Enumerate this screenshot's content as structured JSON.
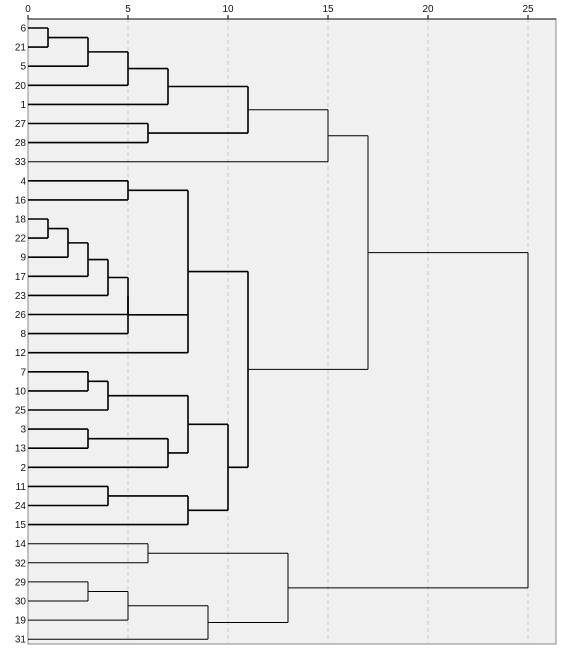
{
  "chart_data": {
    "type": "dendrogram",
    "orientation": "horizontal",
    "xlim": [
      0,
      25
    ],
    "xticks": [
      0,
      5,
      10,
      15,
      20,
      25
    ],
    "grid": "vertical dashed",
    "leaves": [
      "6",
      "21",
      "5",
      "20",
      "1",
      "27",
      "28",
      "33",
      "4",
      "16",
      "18",
      "22",
      "9",
      "17",
      "23",
      "26",
      "8",
      "12",
      "7",
      "10",
      "25",
      "3",
      "13",
      "2",
      "11",
      "24",
      "15",
      "14",
      "32",
      "29",
      "30",
      "19",
      "31"
    ],
    "merges": [
      {
        "id": "A1",
        "children": [
          "6",
          "21"
        ],
        "height": 1
      },
      {
        "id": "A2",
        "children": [
          "A1",
          "5"
        ],
        "height": 3
      },
      {
        "id": "A3",
        "children": [
          "A2",
          "20"
        ],
        "height": 5
      },
      {
        "id": "A4",
        "children": [
          "A3",
          "1"
        ],
        "height": 7
      },
      {
        "id": "A5",
        "children": [
          "27",
          "28"
        ],
        "height": 6
      },
      {
        "id": "A6",
        "children": [
          "A4",
          "A5"
        ],
        "height": 11
      },
      {
        "id": "A7",
        "children": [
          "A6",
          "33"
        ],
        "height": 15
      },
      {
        "id": "B1",
        "children": [
          "4",
          "16"
        ],
        "height": 5
      },
      {
        "id": "B2",
        "children": [
          "18",
          "22"
        ],
        "height": 1
      },
      {
        "id": "B3",
        "children": [
          "B2",
          "9"
        ],
        "height": 2
      },
      {
        "id": "B4",
        "children": [
          "B3",
          "17"
        ],
        "height": 3
      },
      {
        "id": "B5",
        "children": [
          "B4",
          "23"
        ],
        "height": 4
      },
      {
        "id": "B6",
        "children": [
          "B5",
          "26"
        ],
        "height": 5
      },
      {
        "id": "B7",
        "children": [
          "B6",
          "8"
        ],
        "height": 5
      },
      {
        "id": "B8",
        "children": [
          "B1",
          "B7",
          "12"
        ],
        "height": 8
      },
      {
        "id": "C1",
        "children": [
          "7",
          "10"
        ],
        "height": 3
      },
      {
        "id": "C2",
        "children": [
          "C1",
          "25"
        ],
        "height": 4
      },
      {
        "id": "C3",
        "children": [
          "3",
          "13"
        ],
        "height": 3
      },
      {
        "id": "C4",
        "children": [
          "C3",
          "2"
        ],
        "height": 7
      },
      {
        "id": "C5",
        "children": [
          "C2",
          "C4"
        ],
        "height": 8
      },
      {
        "id": "C6",
        "children": [
          "11",
          "24"
        ],
        "height": 4
      },
      {
        "id": "C7",
        "children": [
          "C6",
          "15"
        ],
        "height": 8
      },
      {
        "id": "C8",
        "children": [
          "C5",
          "C7"
        ],
        "height": 10
      },
      {
        "id": "D1",
        "children": [
          "B8",
          "C8"
        ],
        "height": 11
      },
      {
        "id": "D2",
        "children": [
          "A7",
          "D1"
        ],
        "height": 17
      },
      {
        "id": "E1",
        "children": [
          "14",
          "32"
        ],
        "height": 6
      },
      {
        "id": "E2",
        "children": [
          "29",
          "30"
        ],
        "height": 3
      },
      {
        "id": "E3",
        "children": [
          "E2",
          "19"
        ],
        "height": 5
      },
      {
        "id": "E4",
        "children": [
          "E3",
          "31"
        ],
        "height": 9
      },
      {
        "id": "E5",
        "children": [
          "E1",
          "E4"
        ],
        "height": 13
      },
      {
        "id": "ROOT",
        "children": [
          "D2",
          "E5"
        ],
        "height": 25
      }
    ],
    "colors": {
      "plot_background": "#f0f0f0",
      "line": "#000000",
      "grid": "#cccccc"
    }
  }
}
